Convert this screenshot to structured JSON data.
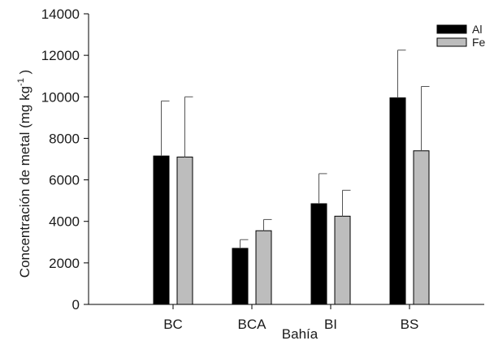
{
  "chart_data": {
    "type": "bar",
    "xlabel": "Bahía",
    "ylabel_main": "Concentración de metal (mg kg",
    "ylabel_sup": "-1",
    "ylabel_tail": " )",
    "categories": [
      "BC",
      "BCA",
      "BI",
      "BS"
    ],
    "ylim": [
      0,
      14000
    ],
    "yticks": [
      0,
      2000,
      4000,
      6000,
      8000,
      10000,
      12000,
      14000
    ],
    "ytick_labels": [
      "0",
      "2000",
      "4000",
      "6000",
      "8000",
      "10000",
      "12000",
      "14000"
    ],
    "series": [
      {
        "name": "Al",
        "color": "#000000",
        "values": [
          7150,
          2700,
          4850,
          9950
        ],
        "errors": [
          2650,
          420,
          1450,
          2300
        ]
      },
      {
        "name": "Fe",
        "color": "#bdbdbd",
        "values": [
          7100,
          3550,
          4250,
          7400
        ],
        "errors": [
          2900,
          540,
          1250,
          3100
        ]
      }
    ],
    "legend_position": "top-right",
    "grid": false
  }
}
